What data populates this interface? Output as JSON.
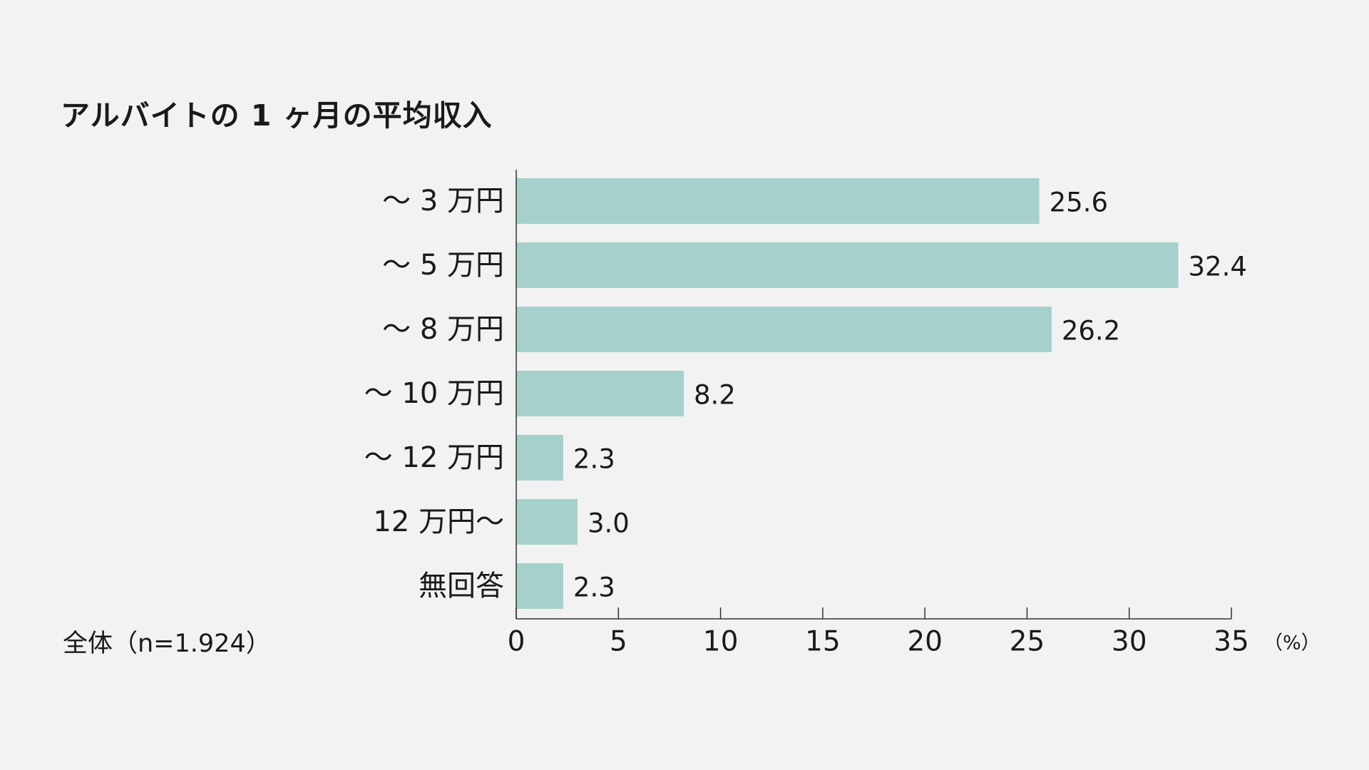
{
  "title": "アルバイトの 1 ヶ月の平均収入",
  "note": "全体（n=1.924）",
  "colors": {
    "bar": "#a5d0cc",
    "axis": "#333333",
    "background": "#f2f2f2"
  },
  "chart_data": {
    "type": "bar",
    "orientation": "horizontal",
    "title": "アルバイトの 1 ヶ月の平均収入",
    "categories": [
      "～ 3 万円",
      "～ 5 万円",
      "～ 8 万円",
      "～ 10 万円",
      "～ 12 万円",
      "12 万円～",
      "無回答"
    ],
    "values": [
      25.6,
      32.4,
      26.2,
      8.2,
      2.3,
      3.0,
      2.3
    ],
    "value_labels": [
      "25.6",
      "32.4",
      "26.2",
      "8.2",
      "2.3",
      "3.0",
      "2.3"
    ],
    "xlim": [
      0,
      35
    ],
    "xticks": [
      0,
      5,
      10,
      15,
      20,
      25,
      30,
      35
    ],
    "xunit": "（%）",
    "grid": false,
    "legend": "none"
  }
}
